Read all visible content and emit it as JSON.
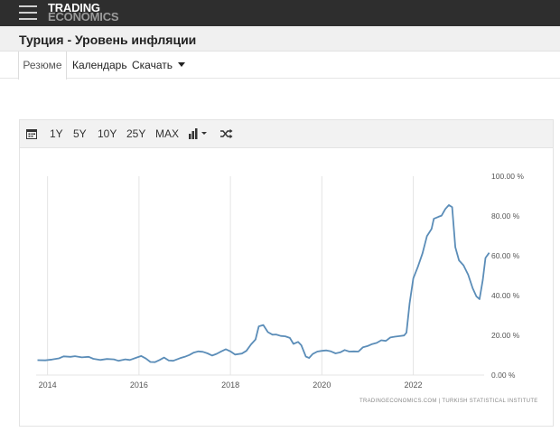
{
  "header": {
    "logo_line1": "TRADING",
    "logo_line2": "ECONOMICS"
  },
  "page": {
    "title": "Турция - Уровень инфляции"
  },
  "tabs": [
    {
      "label": "Резюме",
      "active": true
    },
    {
      "label": "Календарь",
      "active": false
    },
    {
      "label": "Скачать",
      "active": false
    }
  ],
  "toolbar": {
    "ranges": [
      "1Y",
      "5Y",
      "10Y",
      "25Y",
      "MAX"
    ]
  },
  "chart_data": {
    "type": "line",
    "color": "#5b8db8",
    "ylim": [
      0,
      100
    ],
    "y_ticks": [
      "100.00 %",
      "80.00 %",
      "60.00 %",
      "40.00 %",
      "20.00 %",
      "0.00 %"
    ],
    "y_tick_values": [
      100,
      80,
      60,
      40,
      20,
      0
    ],
    "x_ticks": [
      "2014",
      "2016",
      "2018",
      "2020",
      "2022"
    ],
    "x_tick_values": [
      2014,
      2016,
      2018,
      2020,
      2022
    ],
    "xlim": [
      2013.75,
      2023.55
    ],
    "grid": "vertical",
    "source": "TRADINGECONOMICS.COM  |  TURKISH STATISTICAL INSTITUTE",
    "series": [
      {
        "points": [
          [
            2013.78,
            7.5
          ],
          [
            2013.95,
            7.4
          ],
          [
            2014.1,
            7.8
          ],
          [
            2014.25,
            8.4
          ],
          [
            2014.35,
            9.4
          ],
          [
            2014.5,
            9.2
          ],
          [
            2014.6,
            9.5
          ],
          [
            2014.75,
            8.9
          ],
          [
            2014.9,
            9.2
          ],
          [
            2015.0,
            8.2
          ],
          [
            2015.15,
            7.6
          ],
          [
            2015.3,
            8.1
          ],
          [
            2015.45,
            7.9
          ],
          [
            2015.55,
            7.2
          ],
          [
            2015.7,
            7.9
          ],
          [
            2015.8,
            7.6
          ],
          [
            2015.95,
            8.8
          ],
          [
            2016.05,
            9.6
          ],
          [
            2016.15,
            8.3
          ],
          [
            2016.25,
            6.6
          ],
          [
            2016.35,
            6.5
          ],
          [
            2016.45,
            7.6
          ],
          [
            2016.55,
            8.8
          ],
          [
            2016.65,
            7.3
          ],
          [
            2016.75,
            7.2
          ],
          [
            2016.9,
            8.5
          ],
          [
            2017.0,
            9.2
          ],
          [
            2017.1,
            10.1
          ],
          [
            2017.2,
            11.3
          ],
          [
            2017.3,
            11.9
          ],
          [
            2017.4,
            11.7
          ],
          [
            2017.5,
            10.9
          ],
          [
            2017.6,
            9.8
          ],
          [
            2017.7,
            10.7
          ],
          [
            2017.8,
            11.9
          ],
          [
            2017.9,
            13.0
          ],
          [
            2018.0,
            11.9
          ],
          [
            2018.1,
            10.3
          ],
          [
            2018.25,
            10.8
          ],
          [
            2018.35,
            12.2
          ],
          [
            2018.45,
            15.4
          ],
          [
            2018.55,
            17.9
          ],
          [
            2018.62,
            24.5
          ],
          [
            2018.72,
            25.2
          ],
          [
            2018.82,
            21.6
          ],
          [
            2018.92,
            20.3
          ],
          [
            2019.0,
            20.4
          ],
          [
            2019.1,
            19.7
          ],
          [
            2019.2,
            19.5
          ],
          [
            2019.3,
            18.7
          ],
          [
            2019.38,
            15.7
          ],
          [
            2019.48,
            16.7
          ],
          [
            2019.55,
            15.0
          ],
          [
            2019.65,
            9.3
          ],
          [
            2019.72,
            8.6
          ],
          [
            2019.8,
            10.6
          ],
          [
            2019.9,
            11.8
          ],
          [
            2020.0,
            12.2
          ],
          [
            2020.1,
            12.4
          ],
          [
            2020.2,
            11.9
          ],
          [
            2020.3,
            10.9
          ],
          [
            2020.4,
            11.4
          ],
          [
            2020.5,
            12.6
          ],
          [
            2020.6,
            11.8
          ],
          [
            2020.7,
            11.9
          ],
          [
            2020.8,
            11.8
          ],
          [
            2020.9,
            14.0
          ],
          [
            2021.0,
            14.6
          ],
          [
            2021.1,
            15.6
          ],
          [
            2021.2,
            16.2
          ],
          [
            2021.3,
            17.5
          ],
          [
            2021.4,
            17.2
          ],
          [
            2021.5,
            18.9
          ],
          [
            2021.6,
            19.3
          ],
          [
            2021.7,
            19.6
          ],
          [
            2021.8,
            19.9
          ],
          [
            2021.85,
            21.3
          ],
          [
            2021.92,
            36.1
          ],
          [
            2022.0,
            48.7
          ],
          [
            2022.1,
            54.4
          ],
          [
            2022.2,
            61.1
          ],
          [
            2022.3,
            69.9
          ],
          [
            2022.4,
            73.5
          ],
          [
            2022.45,
            78.6
          ],
          [
            2022.55,
            79.6
          ],
          [
            2022.62,
            80.2
          ],
          [
            2022.7,
            83.5
          ],
          [
            2022.78,
            85.5
          ],
          [
            2022.85,
            84.4
          ],
          [
            2022.92,
            64.3
          ],
          [
            2023.0,
            57.7
          ],
          [
            2023.1,
            55.2
          ],
          [
            2023.2,
            50.5
          ],
          [
            2023.3,
            43.7
          ],
          [
            2023.38,
            39.6
          ],
          [
            2023.45,
            38.2
          ],
          [
            2023.52,
            47.8
          ],
          [
            2023.58,
            58.9
          ],
          [
            2023.66,
            61.5
          ]
        ]
      }
    ]
  }
}
